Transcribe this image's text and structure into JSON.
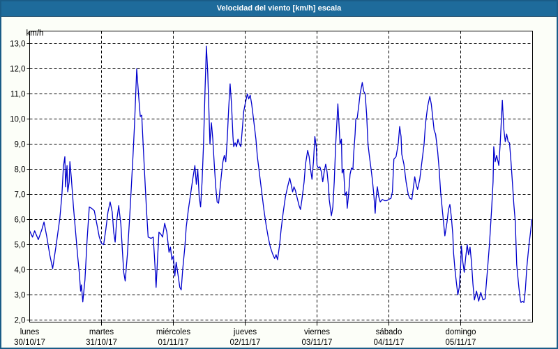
{
  "header": {
    "title": "Velocidad del viento [km/h] escala"
  },
  "colors": {
    "titlebar_bg": "#1e6b9b",
    "window_border": "#1a5c87",
    "window_bg": "#fcfef8",
    "plot_bg": "#ffffff",
    "grid": "#000000",
    "line": "#0000cc",
    "title_text": "#ffffff",
    "label_text": "#000000"
  },
  "chart_data": {
    "type": "line",
    "title": "Velocidad del viento [km/h] escala",
    "unit_label": "km/h",
    "ylabel": "km/h",
    "ylim": [
      2.0,
      13.6
    ],
    "y_ticks": [
      13,
      12,
      11,
      10,
      9,
      8,
      7,
      6,
      5,
      4,
      3,
      2
    ],
    "y_tick_labels": [
      "13,0",
      "12,0",
      "11,0",
      "10,0",
      "9,0",
      "8,0",
      "7,0",
      "6,0",
      "5,0",
      "4,0",
      "3,0",
      "2,0"
    ],
    "grid": "dashed",
    "legend": "none",
    "x_range_days": [
      0,
      7
    ],
    "x_days": [
      {
        "name": "lunes",
        "date": "30/10/17"
      },
      {
        "name": "martes",
        "date": "31/10/17"
      },
      {
        "name": "miércoles",
        "date": "01/11/17"
      },
      {
        "name": "jueves",
        "date": "02/11/17"
      },
      {
        "name": "viernes",
        "date": "03/11/17"
      },
      {
        "name": "sábado",
        "date": "04/11/17"
      },
      {
        "name": "domingo",
        "date": "05/11/17"
      }
    ],
    "series": [
      {
        "name": "Velocidad del viento [km/h]",
        "points": [
          [
            0.0,
            5.55
          ],
          [
            0.04,
            5.3
          ],
          [
            0.07,
            5.55
          ],
          [
            0.12,
            5.2
          ],
          [
            0.17,
            5.6
          ],
          [
            0.2,
            5.9
          ],
          [
            0.24,
            5.3
          ],
          [
            0.28,
            4.6
          ],
          [
            0.32,
            4.05
          ],
          [
            0.37,
            5.0
          ],
          [
            0.42,
            6.05
          ],
          [
            0.45,
            7.0
          ],
          [
            0.47,
            8.1
          ],
          [
            0.49,
            8.5
          ],
          [
            0.5,
            7.3
          ],
          [
            0.52,
            8.15
          ],
          [
            0.53,
            7.1
          ],
          [
            0.55,
            7.5
          ],
          [
            0.56,
            8.3
          ],
          [
            0.58,
            7.68
          ],
          [
            0.61,
            6.5
          ],
          [
            0.64,
            5.5
          ],
          [
            0.67,
            4.5
          ],
          [
            0.69,
            3.9
          ],
          [
            0.71,
            3.15
          ],
          [
            0.72,
            3.4
          ],
          [
            0.74,
            2.72
          ],
          [
            0.77,
            3.6
          ],
          [
            0.8,
            5.2
          ],
          [
            0.83,
            6.5
          ],
          [
            0.86,
            6.45
          ],
          [
            0.9,
            6.35
          ],
          [
            0.93,
            5.9
          ],
          [
            0.97,
            5.3
          ],
          [
            1.0,
            5.05
          ],
          [
            1.03,
            5.0
          ],
          [
            1.06,
            5.6
          ],
          [
            1.09,
            6.3
          ],
          [
            1.12,
            6.7
          ],
          [
            1.15,
            6.3
          ],
          [
            1.17,
            5.5
          ],
          [
            1.19,
            5.1
          ],
          [
            1.21,
            5.9
          ],
          [
            1.24,
            6.55
          ],
          [
            1.27,
            5.8
          ],
          [
            1.29,
            4.8
          ],
          [
            1.31,
            3.9
          ],
          [
            1.33,
            3.55
          ],
          [
            1.36,
            4.6
          ],
          [
            1.39,
            6.0
          ],
          [
            1.41,
            7.0
          ],
          [
            1.44,
            8.6
          ],
          [
            1.46,
            9.8
          ],
          [
            1.49,
            12.0
          ],
          [
            1.5,
            11.6
          ],
          [
            1.52,
            10.8
          ],
          [
            1.54,
            10.1
          ],
          [
            1.56,
            10.15
          ],
          [
            1.58,
            9.0
          ],
          [
            1.61,
            7.3
          ],
          [
            1.63,
            6.2
          ],
          [
            1.65,
            5.3
          ],
          [
            1.69,
            5.25
          ],
          [
            1.72,
            5.3
          ],
          [
            1.74,
            4.4
          ],
          [
            1.76,
            3.3
          ],
          [
            1.78,
            4.4
          ],
          [
            1.8,
            5.5
          ],
          [
            1.83,
            5.4
          ],
          [
            1.85,
            5.3
          ],
          [
            1.88,
            5.85
          ],
          [
            1.91,
            5.5
          ],
          [
            1.94,
            4.7
          ],
          [
            1.96,
            4.9
          ],
          [
            1.98,
            4.4
          ],
          [
            2.0,
            4.55
          ],
          [
            2.02,
            3.75
          ],
          [
            2.04,
            4.3
          ],
          [
            2.06,
            3.9
          ],
          [
            2.09,
            3.3
          ],
          [
            2.11,
            3.2
          ],
          [
            2.13,
            4.0
          ],
          [
            2.16,
            4.9
          ],
          [
            2.18,
            5.7
          ],
          [
            2.21,
            6.4
          ],
          [
            2.24,
            7.0
          ],
          [
            2.27,
            7.6
          ],
          [
            2.3,
            8.15
          ],
          [
            2.32,
            7.4
          ],
          [
            2.34,
            8.0
          ],
          [
            2.36,
            6.9
          ],
          [
            2.38,
            6.5
          ],
          [
            2.4,
            7.5
          ],
          [
            2.42,
            9.0
          ],
          [
            2.44,
            11.0
          ],
          [
            2.46,
            12.9
          ],
          [
            2.48,
            11.8
          ],
          [
            2.5,
            9.9
          ],
          [
            2.51,
            9.0
          ],
          [
            2.53,
            9.85
          ],
          [
            2.55,
            9.2
          ],
          [
            2.57,
            8.2
          ],
          [
            2.59,
            7.3
          ],
          [
            2.61,
            6.7
          ],
          [
            2.63,
            6.65
          ],
          [
            2.65,
            7.2
          ],
          [
            2.67,
            7.8
          ],
          [
            2.69,
            8.3
          ],
          [
            2.71,
            8.55
          ],
          [
            2.73,
            8.3
          ],
          [
            2.75,
            9.2
          ],
          [
            2.77,
            10.4
          ],
          [
            2.79,
            11.4
          ],
          [
            2.81,
            10.6
          ],
          [
            2.83,
            9.3
          ],
          [
            2.84,
            8.9
          ],
          [
            2.86,
            9.05
          ],
          [
            2.88,
            8.9
          ],
          [
            2.9,
            9.2
          ],
          [
            2.92,
            9.0
          ],
          [
            2.94,
            8.9
          ],
          [
            2.96,
            9.6
          ],
          [
            2.98,
            10.3
          ],
          [
            3.0,
            10.6
          ],
          [
            3.03,
            11.0
          ],
          [
            3.05,
            10.8
          ],
          [
            3.07,
            10.95
          ],
          [
            3.09,
            10.6
          ],
          [
            3.12,
            9.9
          ],
          [
            3.15,
            9.2
          ],
          [
            3.17,
            8.5
          ],
          [
            3.2,
            7.8
          ],
          [
            3.23,
            7.1
          ],
          [
            3.26,
            6.4
          ],
          [
            3.29,
            5.8
          ],
          [
            3.32,
            5.3
          ],
          [
            3.35,
            4.9
          ],
          [
            3.38,
            4.65
          ],
          [
            3.41,
            4.45
          ],
          [
            3.43,
            4.6
          ],
          [
            3.45,
            4.4
          ],
          [
            3.48,
            5.0
          ],
          [
            3.5,
            5.6
          ],
          [
            3.53,
            6.3
          ],
          [
            3.56,
            6.9
          ],
          [
            3.59,
            7.3
          ],
          [
            3.62,
            7.65
          ],
          [
            3.64,
            7.4
          ],
          [
            3.66,
            7.1
          ],
          [
            3.68,
            7.3
          ],
          [
            3.7,
            7.15
          ],
          [
            3.72,
            6.9
          ],
          [
            3.75,
            6.55
          ],
          [
            3.77,
            6.4
          ],
          [
            3.79,
            6.8
          ],
          [
            3.82,
            7.5
          ],
          [
            3.84,
            8.2
          ],
          [
            3.87,
            8.75
          ],
          [
            3.89,
            8.5
          ],
          [
            3.91,
            8.0
          ],
          [
            3.93,
            7.6
          ],
          [
            3.95,
            8.3
          ],
          [
            3.97,
            9.3
          ],
          [
            3.99,
            8.9
          ],
          [
            4.0,
            8.15
          ],
          [
            4.02,
            8.05
          ],
          [
            4.04,
            8.1
          ],
          [
            4.06,
            7.9
          ],
          [
            4.08,
            7.5
          ],
          [
            4.1,
            7.9
          ],
          [
            4.12,
            8.2
          ],
          [
            4.14,
            7.9
          ],
          [
            4.16,
            7.3
          ],
          [
            4.17,
            6.8
          ],
          [
            4.2,
            6.15
          ],
          [
            4.22,
            6.5
          ],
          [
            4.24,
            7.5
          ],
          [
            4.26,
            9.0
          ],
          [
            4.29,
            10.6
          ],
          [
            4.31,
            9.6
          ],
          [
            4.32,
            9.0
          ],
          [
            4.34,
            9.2
          ],
          [
            4.35,
            7.85
          ],
          [
            4.37,
            8.0
          ],
          [
            4.39,
            6.95
          ],
          [
            4.41,
            7.1
          ],
          [
            4.42,
            6.45
          ],
          [
            4.44,
            7.0
          ],
          [
            4.46,
            7.8
          ],
          [
            4.48,
            8.05
          ],
          [
            4.5,
            8.0
          ],
          [
            4.51,
            8.6
          ],
          [
            4.53,
            9.4
          ],
          [
            4.54,
            10.0
          ],
          [
            4.56,
            10.05
          ],
          [
            4.58,
            10.5
          ],
          [
            4.6,
            11.0
          ],
          [
            4.63,
            11.45
          ],
          [
            4.65,
            11.1
          ],
          [
            4.67,
            11.0
          ],
          [
            4.69,
            10.2
          ],
          [
            4.71,
            9.0
          ],
          [
            4.73,
            8.5
          ],
          [
            4.75,
            8.05
          ],
          [
            4.77,
            7.6
          ],
          [
            4.79,
            7.0
          ],
          [
            4.81,
            6.25
          ],
          [
            4.82,
            6.8
          ],
          [
            4.84,
            7.3
          ],
          [
            4.86,
            6.9
          ],
          [
            4.88,
            6.7
          ],
          [
            4.91,
            6.8
          ],
          [
            4.94,
            6.75
          ],
          [
            4.97,
            6.75
          ],
          [
            5.0,
            6.8
          ],
          [
            5.03,
            6.85
          ],
          [
            5.05,
            7.1
          ],
          [
            5.07,
            8.4
          ],
          [
            5.1,
            8.5
          ],
          [
            5.13,
            9.0
          ],
          [
            5.15,
            9.7
          ],
          [
            5.17,
            9.3
          ],
          [
            5.18,
            8.6
          ],
          [
            5.21,
            8.2
          ],
          [
            5.24,
            7.5
          ],
          [
            5.27,
            7.0
          ],
          [
            5.29,
            6.85
          ],
          [
            5.32,
            6.8
          ],
          [
            5.36,
            7.7
          ],
          [
            5.38,
            7.4
          ],
          [
            5.4,
            7.2
          ],
          [
            5.43,
            7.6
          ],
          [
            5.46,
            8.3
          ],
          [
            5.49,
            9.0
          ],
          [
            5.51,
            9.8
          ],
          [
            5.54,
            10.5
          ],
          [
            5.57,
            10.9
          ],
          [
            5.59,
            10.6
          ],
          [
            5.61,
            10.1
          ],
          [
            5.63,
            9.55
          ],
          [
            5.65,
            9.4
          ],
          [
            5.68,
            8.7
          ],
          [
            5.7,
            8.0
          ],
          [
            5.72,
            7.1
          ],
          [
            5.75,
            6.2
          ],
          [
            5.78,
            5.35
          ],
          [
            5.81,
            5.9
          ],
          [
            5.83,
            6.4
          ],
          [
            5.85,
            6.6
          ],
          [
            5.87,
            6.1
          ],
          [
            5.89,
            5.4
          ],
          [
            5.9,
            4.7
          ],
          [
            5.92,
            4.0
          ],
          [
            5.94,
            3.5
          ],
          [
            5.96,
            3.0
          ],
          [
            5.98,
            3.3
          ],
          [
            6.0,
            4.2
          ],
          [
            6.01,
            4.95
          ],
          [
            6.03,
            4.3
          ],
          [
            6.05,
            3.9
          ],
          [
            6.07,
            4.5
          ],
          [
            6.09,
            5.0
          ],
          [
            6.11,
            4.6
          ],
          [
            6.13,
            4.9
          ],
          [
            6.15,
            4.3
          ],
          [
            6.17,
            3.45
          ],
          [
            6.19,
            2.8
          ],
          [
            6.22,
            3.15
          ],
          [
            6.25,
            2.75
          ],
          [
            6.28,
            3.1
          ],
          [
            6.31,
            2.8
          ],
          [
            6.34,
            2.85
          ],
          [
            6.37,
            3.9
          ],
          [
            6.4,
            5.0
          ],
          [
            6.43,
            6.4
          ],
          [
            6.45,
            7.5
          ],
          [
            6.46,
            8.9
          ],
          [
            6.48,
            8.3
          ],
          [
            6.5,
            8.55
          ],
          [
            6.52,
            8.3
          ],
          [
            6.53,
            8.15
          ],
          [
            6.55,
            9.0
          ],
          [
            6.58,
            10.75
          ],
          [
            6.6,
            9.6
          ],
          [
            6.62,
            9.1
          ],
          [
            6.64,
            9.4
          ],
          [
            6.66,
            9.1
          ],
          [
            6.68,
            9.05
          ],
          [
            6.7,
            8.3
          ],
          [
            6.72,
            7.45
          ],
          [
            6.74,
            6.6
          ],
          [
            6.76,
            5.9
          ],
          [
            6.78,
            4.2
          ],
          [
            6.81,
            3.3
          ],
          [
            6.83,
            2.8
          ],
          [
            6.84,
            2.7
          ],
          [
            6.86,
            2.75
          ],
          [
            6.88,
            2.7
          ],
          [
            6.9,
            3.2
          ],
          [
            6.92,
            4.1
          ],
          [
            6.95,
            5.0
          ],
          [
            6.97,
            5.45
          ],
          [
            6.99,
            6.0
          ]
        ]
      }
    ]
  }
}
